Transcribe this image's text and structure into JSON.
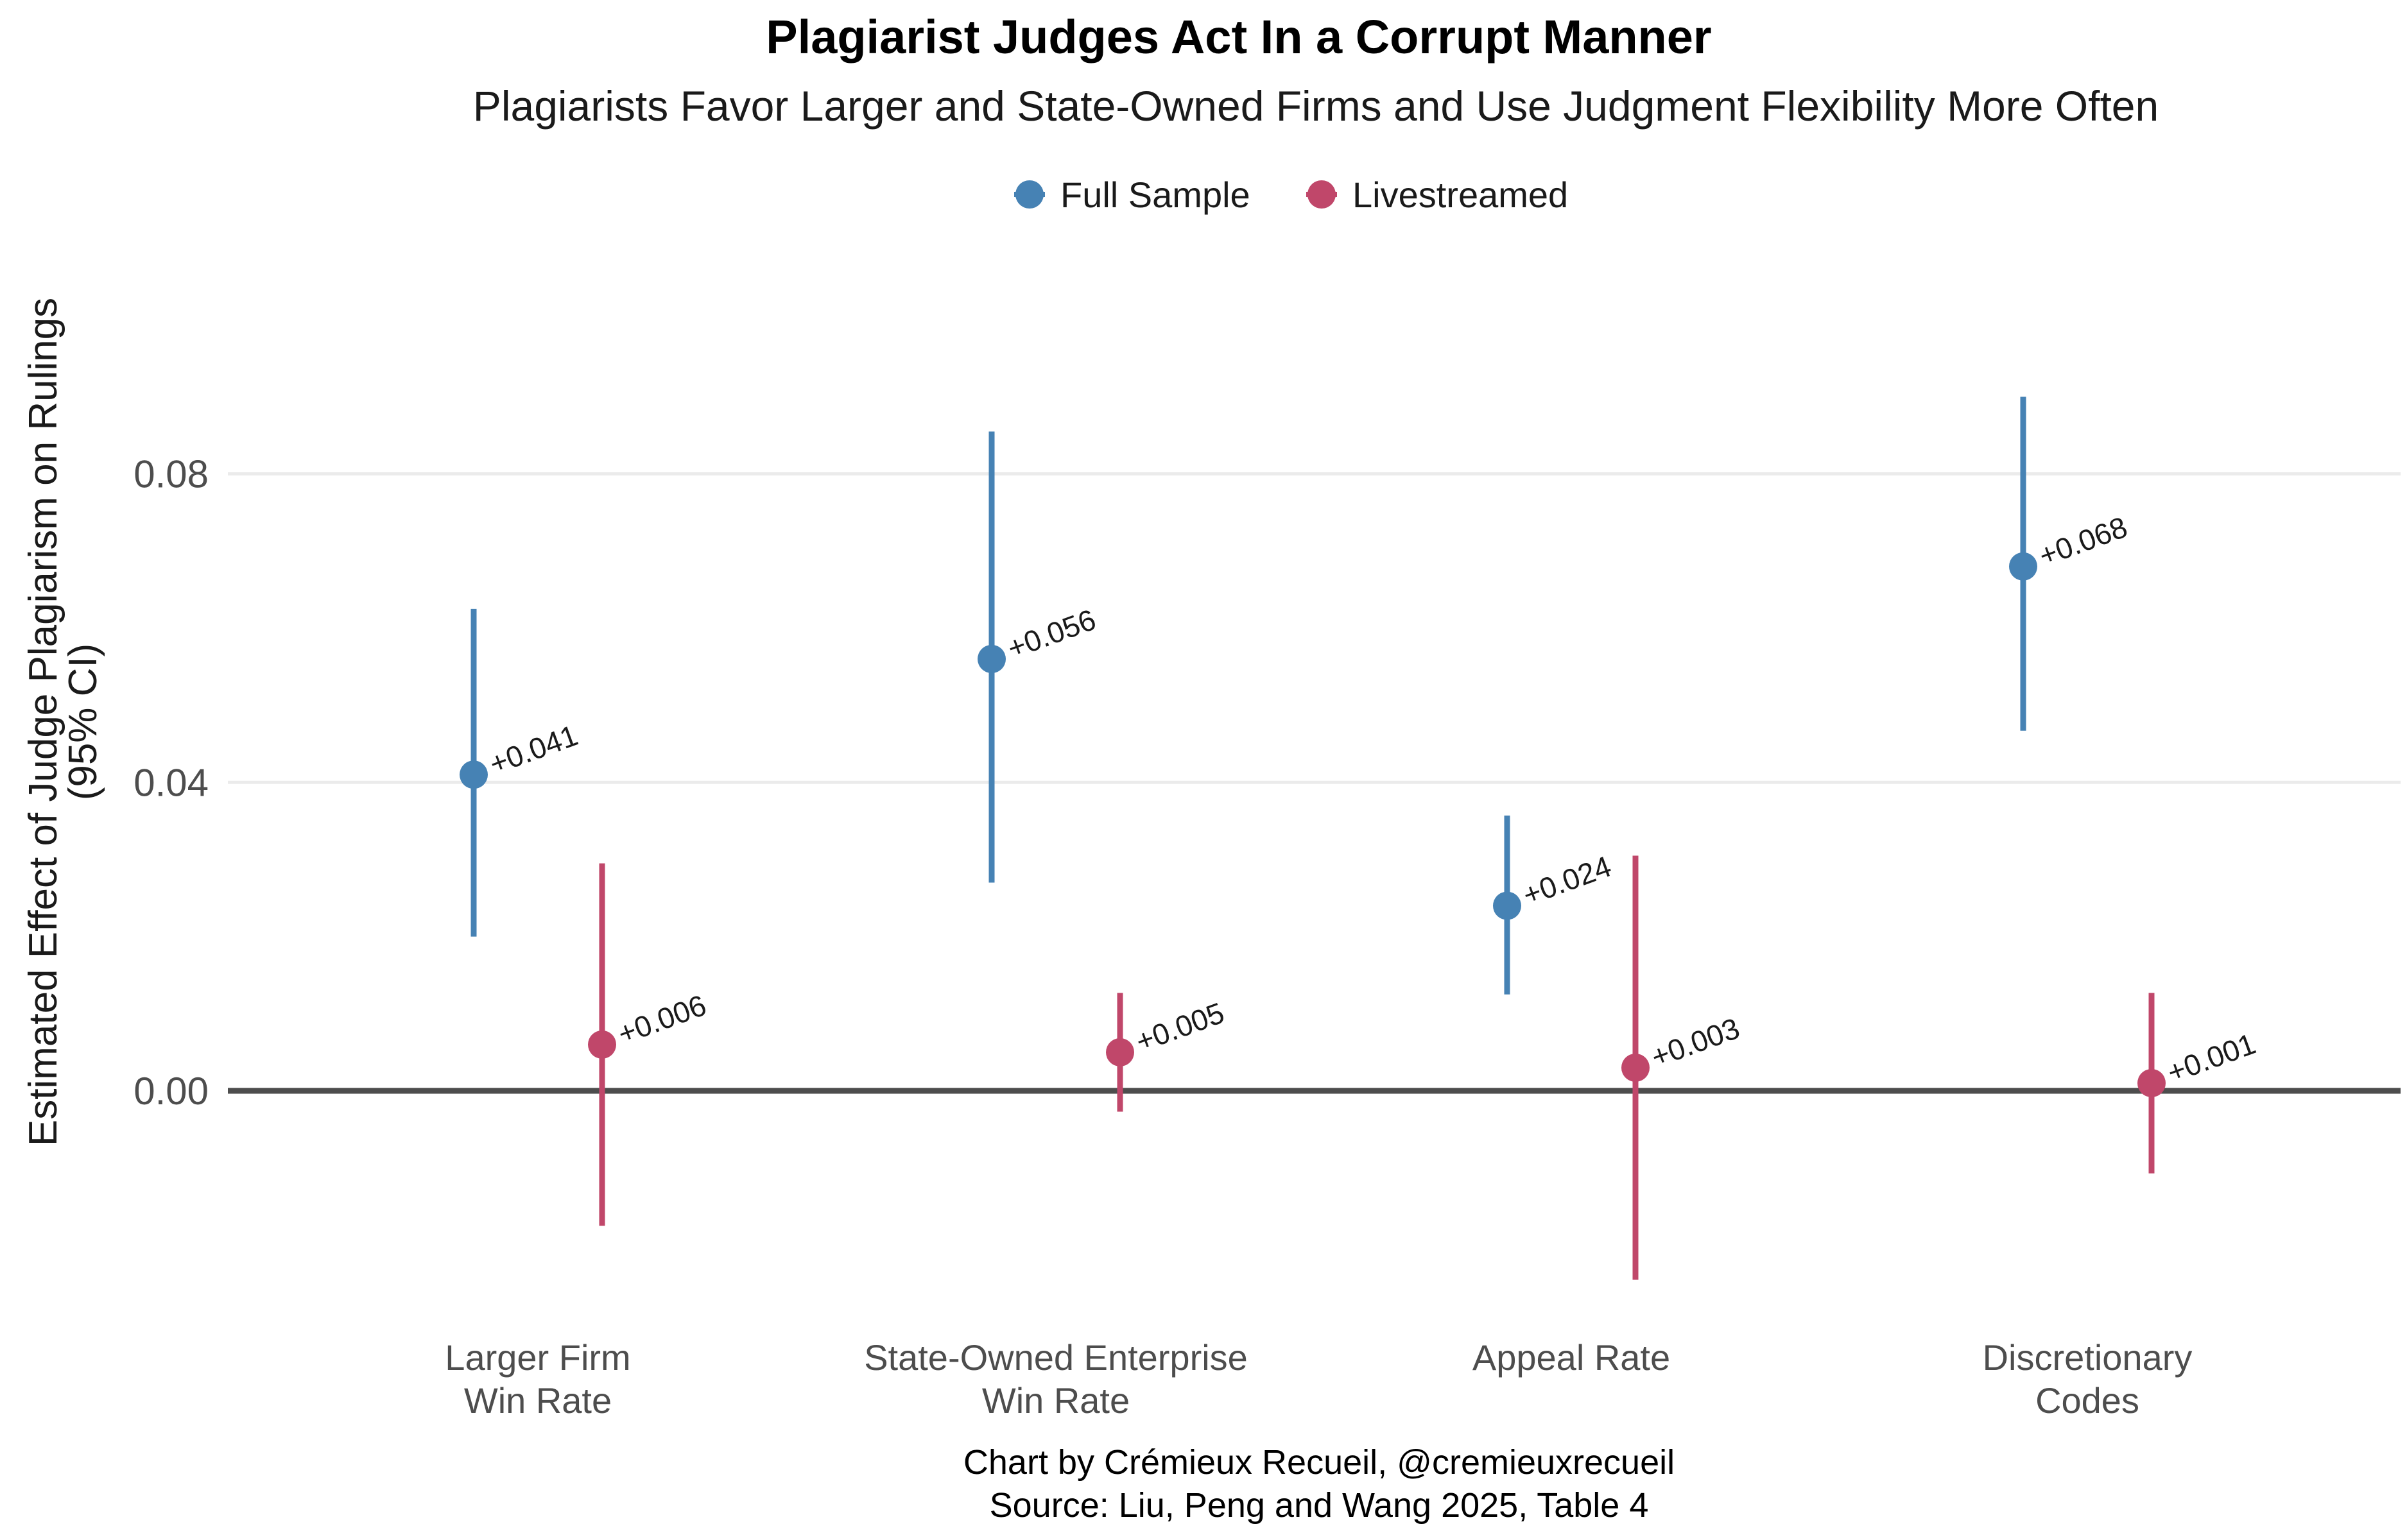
{
  "chart_data": {
    "type": "scatter",
    "title": "Plagiarist Judges Act In a Corrupt Manner",
    "subtitle": "Plagiarists Favor Larger and State-Owned Firms and Use Judgment Flexibility More Often",
    "ylabel_line1": "Estimated Effect of Judge Plagiarism on Rulings",
    "ylabel_line2": "(95% CI)",
    "caption_line1": "Chart by Crémieux Recueil, @cremieuxrecueil",
    "caption_line2": "Source: Liu, Peng and Wang 2025, Table 4",
    "ylim": [
      -0.027,
      0.1
    ],
    "yticks": [
      "0.00",
      "0.04",
      "0.08"
    ],
    "ytick_values": [
      0.0,
      0.04,
      0.08
    ],
    "grid": true,
    "legend_position": "top",
    "categories": [
      {
        "line1": "Larger Firm",
        "line2": "Win Rate"
      },
      {
        "line1": "State-Owned Enterprise",
        "line2": "Win Rate"
      },
      {
        "line1": "Appeal Rate",
        "line2": ""
      },
      {
        "line1": "Discretionary",
        "line2": "Codes"
      }
    ],
    "series": [
      {
        "name": "Full Sample",
        "color": "#4682B4",
        "points": [
          {
            "estimate": 0.041,
            "lower": 0.02,
            "upper": 0.0625,
            "label": "+0.041"
          },
          {
            "estimate": 0.056,
            "lower": 0.027,
            "upper": 0.0855,
            "label": "+0.056"
          },
          {
            "estimate": 0.024,
            "lower": 0.0125,
            "upper": 0.0357,
            "label": "+0.024"
          },
          {
            "estimate": 0.068,
            "lower": 0.0467,
            "upper": 0.09,
            "label": "+0.068"
          }
        ]
      },
      {
        "name": "Livestreamed",
        "color": "#C0476A",
        "points": [
          {
            "estimate": 0.006,
            "lower": -0.0175,
            "upper": 0.0295,
            "label": "+0.006"
          },
          {
            "estimate": 0.005,
            "lower": -0.0027,
            "upper": 0.0127,
            "label": "+0.005"
          },
          {
            "estimate": 0.003,
            "lower": -0.0245,
            "upper": 0.0305,
            "label": "+0.003"
          },
          {
            "estimate": 0.001,
            "lower": -0.0107,
            "upper": 0.0127,
            "label": "+0.001"
          }
        ]
      }
    ]
  }
}
